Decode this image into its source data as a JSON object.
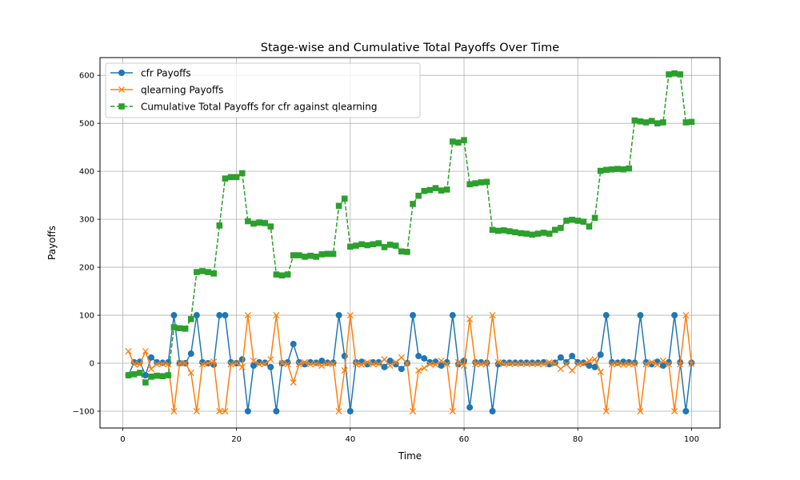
{
  "chart_data": {
    "type": "line",
    "title": "Stage-wise and Cumulative Total Payoffs Over Time",
    "xlabel": "Time",
    "ylabel": "Payoffs",
    "xlim": [
      -4,
      105
    ],
    "ylim": [
      -135,
      637
    ],
    "xticks": [
      0,
      20,
      40,
      60,
      80,
      100
    ],
    "yticks": [
      -100,
      0,
      100,
      200,
      300,
      400,
      500,
      600
    ],
    "grid": true,
    "legend_position": "top-left",
    "x": [
      1,
      2,
      3,
      4,
      5,
      6,
      7,
      8,
      9,
      10,
      11,
      12,
      13,
      14,
      15,
      16,
      17,
      18,
      19,
      20,
      21,
      22,
      23,
      24,
      25,
      26,
      27,
      28,
      29,
      30,
      31,
      32,
      33,
      34,
      35,
      36,
      37,
      38,
      39,
      40,
      41,
      42,
      43,
      44,
      45,
      46,
      47,
      48,
      49,
      50,
      51,
      52,
      53,
      54,
      55,
      56,
      57,
      58,
      59,
      60,
      61,
      62,
      63,
      64,
      65,
      66,
      67,
      68,
      69,
      70,
      71,
      72,
      73,
      74,
      75,
      76,
      77,
      78,
      79,
      80,
      81,
      82,
      83,
      84,
      85,
      86,
      87,
      88,
      89,
      90,
      91,
      92,
      93,
      94,
      95,
      96,
      97,
      98,
      99,
      100
    ],
    "series": [
      {
        "name": "cfr Payoffs",
        "color": "#1f77b4",
        "marker": "circle",
        "linestyle": "solid",
        "values": [
          -25,
          2,
          3,
          -25,
          12,
          2,
          1,
          2,
          100,
          0,
          0,
          20,
          100,
          2,
          0,
          -3,
          100,
          100,
          2,
          0,
          8,
          -100,
          -5,
          2,
          1,
          -8,
          -100,
          0,
          2,
          40,
          2,
          -2,
          2,
          1,
          5,
          1,
          1,
          100,
          15,
          -100,
          2,
          3,
          -2,
          2,
          2,
          -8,
          5,
          -2,
          -12,
          0,
          100,
          15,
          10,
          2,
          3,
          -5,
          2,
          100,
          -2,
          5,
          -92,
          2,
          2,
          1,
          -100,
          -2,
          1,
          1,
          1,
          1,
          1,
          1,
          1,
          2,
          -2,
          1,
          12,
          2,
          15,
          2,
          1,
          -5,
          -8,
          18,
          100,
          2,
          1,
          3,
          2,
          1,
          100,
          2,
          -2,
          3,
          -5,
          2,
          100,
          2,
          -100,
          1
        ]
      },
      {
        "name": "qlearning Payoffs",
        "color": "#ff7f0e",
        "marker": "x",
        "linestyle": "solid",
        "values": [
          25,
          -2,
          -3,
          25,
          -12,
          -2,
          -1,
          -2,
          -100,
          0,
          0,
          -20,
          -100,
          -2,
          0,
          3,
          -100,
          -100,
          -2,
          0,
          -8,
          100,
          5,
          -2,
          -1,
          8,
          100,
          0,
          -2,
          -40,
          -2,
          2,
          -2,
          -1,
          -5,
          -1,
          -1,
          -100,
          -15,
          100,
          -2,
          -3,
          2,
          -2,
          -2,
          8,
          -5,
          2,
          12,
          0,
          -100,
          -15,
          -10,
          -2,
          -3,
          5,
          -2,
          -100,
          2,
          -5,
          92,
          -2,
          -2,
          -1,
          100,
          2,
          -1,
          -1,
          -1,
          -1,
          -1,
          -1,
          -1,
          -2,
          2,
          -1,
          -12,
          -2,
          -15,
          -2,
          -1,
          5,
          8,
          -18,
          -100,
          -2,
          -1,
          -3,
          -2,
          -1,
          -100,
          -2,
          2,
          -3,
          5,
          -2,
          -100,
          -2,
          100,
          -1
        ]
      },
      {
        "name": "Cumulative Total Payoffs for cfr against qlearning",
        "color": "#2ca02c",
        "marker": "square",
        "linestyle": "dashed",
        "values": [
          -25,
          -23,
          -20,
          -40,
          -28,
          -26,
          -27,
          -25,
          75,
          73,
          72,
          92,
          190,
          192,
          190,
          187,
          287,
          385,
          388,
          388,
          396,
          296,
          291,
          293,
          292,
          285,
          185,
          183,
          185,
          225,
          225,
          222,
          224,
          222,
          227,
          228,
          228,
          328,
          343,
          243,
          245,
          248,
          246,
          248,
          250,
          242,
          247,
          245,
          233,
          232,
          332,
          349,
          359,
          361,
          365,
          360,
          362,
          462,
          460,
          465,
          373,
          375,
          377,
          378,
          278,
          276,
          277,
          275,
          273,
          271,
          270,
          268,
          270,
          272,
          270,
          278,
          282,
          297,
          299,
          297,
          295,
          285,
          303,
          401,
          403,
          404,
          405,
          404,
          406,
          506,
          504,
          502,
          505,
          500,
          502,
          602,
          604,
          602,
          502,
          503
        ]
      }
    ]
  }
}
